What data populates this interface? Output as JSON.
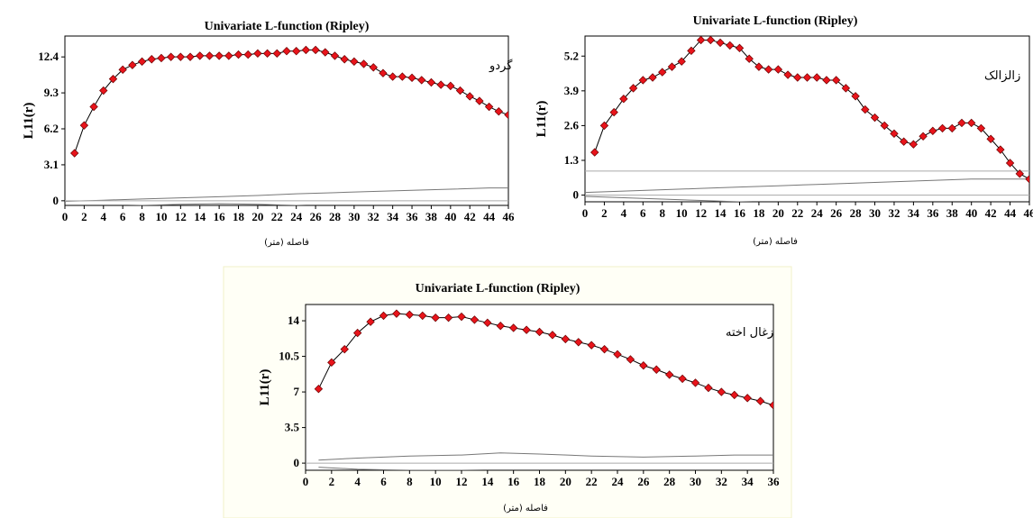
{
  "chart_data": [
    {
      "type": "line",
      "title": "Univariate L-function (Ripley)",
      "ylabel": "L11(r)",
      "xlabel": "فاصله (متر)",
      "annotation": "گردو",
      "xlim": [
        0,
        46
      ],
      "ylim": [
        -0.4,
        14.2
      ],
      "xticks": [
        0,
        2,
        4,
        6,
        8,
        10,
        12,
        14,
        16,
        18,
        20,
        22,
        24,
        26,
        28,
        30,
        32,
        34,
        36,
        38,
        40,
        42,
        44,
        46
      ],
      "yticks": [
        0,
        3.1,
        6.2,
        9.3,
        12.4
      ],
      "yticklabels": [
        "0",
        "3.1",
        "6.2",
        "9.3",
        "12.4"
      ],
      "grid": false,
      "series": [
        {
          "x": [
            1,
            2,
            3,
            4,
            5,
            6,
            7,
            8,
            9,
            10,
            11,
            12,
            13,
            14,
            15,
            16,
            17,
            18,
            19,
            20,
            21,
            22,
            23,
            24,
            25,
            26,
            27,
            28,
            29,
            30,
            31,
            32,
            33,
            34,
            35,
            36,
            37,
            38,
            39,
            40,
            41,
            42,
            43,
            44,
            45,
            46
          ],
          "y": [
            4.1,
            6.5,
            8.1,
            9.5,
            10.5,
            11.3,
            11.7,
            12.0,
            12.2,
            12.3,
            12.4,
            12.4,
            12.4,
            12.5,
            12.5,
            12.5,
            12.5,
            12.6,
            12.6,
            12.7,
            12.7,
            12.7,
            12.9,
            12.9,
            13.0,
            13.0,
            12.8,
            12.5,
            12.2,
            12.0,
            11.8,
            11.5,
            11.0,
            10.7,
            10.7,
            10.6,
            10.4,
            10.2,
            10.0,
            9.9,
            9.5,
            9.0,
            8.6,
            8.1,
            7.7,
            7.4
          ],
          "marker": "diamond",
          "color": "#e8141b"
        },
        {
          "x": [
            0,
            4,
            8,
            12,
            16,
            20,
            24,
            28,
            32,
            36,
            40,
            44,
            46
          ],
          "y": [
            -0.05,
            0.05,
            0.15,
            0.25,
            0.35,
            0.45,
            0.6,
            0.7,
            0.8,
            0.9,
            1.0,
            1.1,
            1.1
          ],
          "color": "#777777"
        },
        {
          "x": [
            0,
            4,
            8,
            12,
            16,
            20,
            24,
            28,
            32,
            36,
            40,
            44,
            46
          ],
          "y": [
            -0.45,
            -0.5,
            -0.4,
            -0.3,
            -0.25,
            -0.3,
            -0.4,
            -0.55,
            -0.7,
            -0.85,
            -1.0,
            -1.1,
            -1.1
          ],
          "color": "#777777"
        },
        {
          "x": [
            0,
            46
          ],
          "y": [
            0,
            0
          ],
          "color": "#aaaaaa"
        }
      ]
    },
    {
      "type": "line",
      "title": "Univariate L-function (Ripley)",
      "ylabel": "L11(r)",
      "xlabel": "فاصله (متر)",
      "annotation": "زالزالک",
      "xlim": [
        0,
        46
      ],
      "ylim": [
        -0.25,
        5.95
      ],
      "xticks": [
        0,
        2,
        4,
        6,
        8,
        10,
        12,
        14,
        16,
        18,
        20,
        22,
        24,
        26,
        28,
        30,
        32,
        34,
        36,
        38,
        40,
        42,
        44,
        46
      ],
      "yticks": [
        0,
        1.3,
        2.6,
        3.9,
        5.2
      ],
      "yticklabels": [
        "0",
        "1.3",
        "2.6",
        "3.9",
        "5.2"
      ],
      "grid": false,
      "series": [
        {
          "x": [
            1,
            2,
            3,
            4,
            5,
            6,
            7,
            8,
            9,
            10,
            11,
            12,
            13,
            14,
            15,
            16,
            17,
            18,
            19,
            20,
            21,
            22,
            23,
            24,
            25,
            26,
            27,
            28,
            29,
            30,
            31,
            32,
            33,
            34,
            35,
            36,
            37,
            38,
            39,
            40,
            41,
            42,
            43,
            44,
            45,
            46
          ],
          "y": [
            1.6,
            2.6,
            3.1,
            3.6,
            4.0,
            4.3,
            4.4,
            4.6,
            4.8,
            5.0,
            5.4,
            5.8,
            5.8,
            5.7,
            5.6,
            5.5,
            5.1,
            4.8,
            4.7,
            4.7,
            4.5,
            4.4,
            4.4,
            4.4,
            4.3,
            4.3,
            4.0,
            3.7,
            3.2,
            2.9,
            2.6,
            2.3,
            2.0,
            1.9,
            2.2,
            2.4,
            2.5,
            2.5,
            2.7,
            2.7,
            2.5,
            2.1,
            1.7,
            1.2,
            0.8,
            0.6
          ],
          "marker": "diamond",
          "color": "#e8141b"
        },
        {
          "x": [
            0,
            46
          ],
          "y": [
            0.9,
            0.9
          ],
          "color": "#aaaaaa"
        },
        {
          "x": [
            0,
            4,
            8,
            12,
            16,
            20,
            24,
            28,
            32,
            36,
            40,
            44,
            46
          ],
          "y": [
            0.1,
            0.15,
            0.2,
            0.25,
            0.3,
            0.35,
            0.4,
            0.45,
            0.5,
            0.55,
            0.6,
            0.6,
            0.6
          ],
          "color": "#777777"
        },
        {
          "x": [
            0,
            4,
            8,
            12,
            16,
            20,
            24,
            28,
            32,
            36,
            40,
            44,
            46
          ],
          "y": [
            -0.05,
            -0.1,
            -0.15,
            -0.2,
            -0.25,
            -0.3,
            -0.35,
            -0.4,
            -0.45,
            -0.5,
            -0.55,
            -0.6,
            -0.6
          ],
          "color": "#777777"
        },
        {
          "x": [
            0,
            46
          ],
          "y": [
            0,
            0
          ],
          "color": "#aaaaaa"
        }
      ]
    },
    {
      "type": "line",
      "title": "Univariate L-function (Ripley)",
      "ylabel": "L11(r)",
      "xlabel": "فاصله (متر)",
      "annotation": "زغال اخته",
      "xlim": [
        0,
        36
      ],
      "ylim": [
        -0.7,
        15.6
      ],
      "xticks": [
        0,
        2,
        4,
        6,
        8,
        10,
        12,
        14,
        16,
        18,
        20,
        22,
        24,
        26,
        28,
        30,
        32,
        34,
        36
      ],
      "yticks": [
        0,
        3.5,
        7,
        10.5,
        14
      ],
      "yticklabels": [
        "0",
        "3.5",
        "7",
        "10.5",
        "14"
      ],
      "grid": false,
      "series": [
        {
          "x": [
            1,
            2,
            3,
            4,
            5,
            6,
            7,
            8,
            9,
            10,
            11,
            12,
            13,
            14,
            15,
            16,
            17,
            18,
            19,
            20,
            21,
            22,
            23,
            24,
            25,
            26,
            27,
            28,
            29,
            30,
            31,
            32,
            33,
            34,
            35,
            36
          ],
          "y": [
            7.3,
            9.9,
            11.2,
            12.8,
            13.9,
            14.5,
            14.7,
            14.6,
            14.5,
            14.3,
            14.3,
            14.4,
            14.1,
            13.8,
            13.5,
            13.3,
            13.1,
            12.9,
            12.6,
            12.2,
            11.9,
            11.6,
            11.2,
            10.7,
            10.2,
            9.6,
            9.2,
            8.7,
            8.3,
            7.9,
            7.4,
            7.0,
            6.7,
            6.4,
            6.1,
            5.7
          ],
          "marker": "diamond",
          "color": "#e8141b"
        },
        {
          "x": [
            1,
            4,
            8,
            12,
            15,
            18,
            22,
            26,
            30,
            33,
            36
          ],
          "y": [
            0.3,
            0.5,
            0.7,
            0.8,
            1.0,
            0.9,
            0.7,
            0.6,
            0.7,
            0.8,
            0.8
          ],
          "color": "#777777"
        },
        {
          "x": [
            1,
            4,
            8,
            12,
            16,
            20,
            24,
            28,
            32,
            34,
            36
          ],
          "y": [
            -0.4,
            -0.6,
            -0.7,
            -0.7,
            -0.8,
            -0.9,
            -0.9,
            -0.8,
            -1.0,
            -1.0,
            -1.0
          ],
          "color": "#777777"
        },
        {
          "x": [
            0,
            36
          ],
          "y": [
            0,
            0
          ],
          "color": "#aaaaaa"
        }
      ]
    }
  ]
}
